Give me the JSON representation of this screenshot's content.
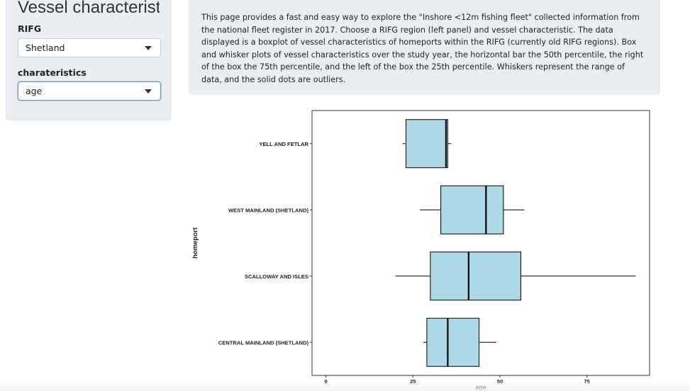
{
  "sidebar": {
    "title": "Vessel characteristics",
    "rifg_label": "RIFG",
    "rifg_value": "Shetland",
    "char_label": "charateristics",
    "char_value": "age"
  },
  "info": {
    "text": "This page provides a fast and easy way to explore the \"Inshore <12m fishing fleet\" collected information from the national fleet register in 2017. Choose a RIFG region (left panel) and vessel characteristic. The data displayed is a boxplot of vessel characteristics of homeports within the RIFG (currently old RIFG regions). Box and whisker plots of vessel characteristics over the study year, the horizontal bar the 50th percentile, the right of the box the 75th percentile, and the left of the box the 25th percentile. Whiskers represent the range of data, and the solid dots are outliers."
  },
  "colors": {
    "box_fill": "#add8e6",
    "box_stroke": "#000000",
    "panel_bg": "#eaeef2"
  },
  "chart_data": {
    "type": "boxplot",
    "xlabel": "age",
    "ylabel": "homeport",
    "xlim": [
      -4,
      93
    ],
    "xticks": [
      0,
      25,
      50,
      75
    ],
    "grid": false,
    "categories": [
      "YELL AND FETLAR",
      "WEST MAINLAND (SHETLAND)",
      "SCALLOWAY AND ISLES",
      "CENTRAL MAINLAND (SHETLAND)"
    ],
    "boxes": [
      {
        "min": 22,
        "q1": 23,
        "median": 34.5,
        "q3": 35,
        "max": 36
      },
      {
        "min": 27,
        "q1": 33,
        "median": 46,
        "q3": 51,
        "max": 57
      },
      {
        "min": 20,
        "q1": 30,
        "median": 41,
        "q3": 56,
        "max": 89
      },
      {
        "min": 28,
        "q1": 29,
        "median": 35,
        "q3": 44,
        "max": 49
      }
    ]
  }
}
